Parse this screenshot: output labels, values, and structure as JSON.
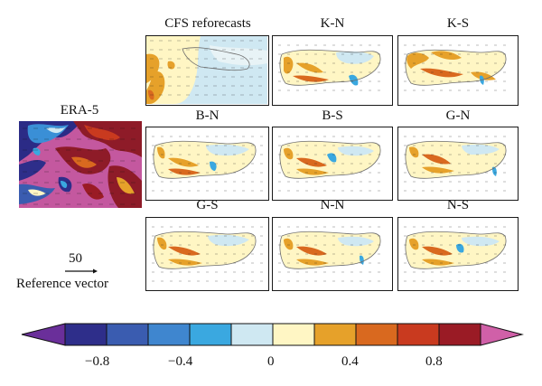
{
  "era5": {
    "title": "ERA-5"
  },
  "panels": [
    {
      "id": "cfs",
      "title": "CFS reforecasts"
    },
    {
      "id": "kn",
      "title": "K-N"
    },
    {
      "id": "ks",
      "title": "K-S"
    },
    {
      "id": "bn",
      "title": "B-N"
    },
    {
      "id": "bs",
      "title": "B-S"
    },
    {
      "id": "gn",
      "title": "G-N"
    },
    {
      "id": "gs",
      "title": "G-S"
    },
    {
      "id": "nn",
      "title": "N-N"
    },
    {
      "id": "ns",
      "title": "N-S"
    }
  ],
  "reference": {
    "value": "50",
    "label": "Reference vector"
  },
  "colorbar": {
    "ticks": [
      "−0.8",
      "−0.4",
      "0",
      "0.4",
      "0.8"
    ],
    "colors": [
      "#6a2f9a",
      "#2e2e8a",
      "#3a5cb0",
      "#3f86cf",
      "#3aa8e0",
      "#cfe8f2",
      "#fff6c4",
      "#e6a12a",
      "#d9691f",
      "#c93a1f",
      "#9a1b25",
      "#d060a8"
    ]
  }
}
